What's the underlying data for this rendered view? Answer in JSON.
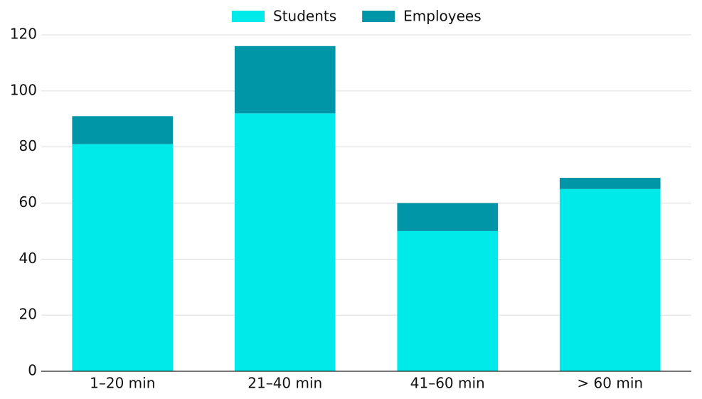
{
  "chart_data": {
    "type": "bar",
    "stacked": true,
    "categories": [
      "1–20 min",
      "21–40 min",
      "41–60 min",
      "> 60 min"
    ],
    "series": [
      {
        "name": "Students",
        "color": "#00eaea",
        "values": [
          81,
          92,
          50,
          65
        ]
      },
      {
        "name": "Employees",
        "color": "#0096a8",
        "values": [
          10,
          24,
          10,
          4
        ]
      }
    ],
    "ylim": [
      0,
      120
    ],
    "yticks": [
      0,
      20,
      40,
      60,
      80,
      100,
      120
    ],
    "grid": true,
    "legend": "top"
  }
}
